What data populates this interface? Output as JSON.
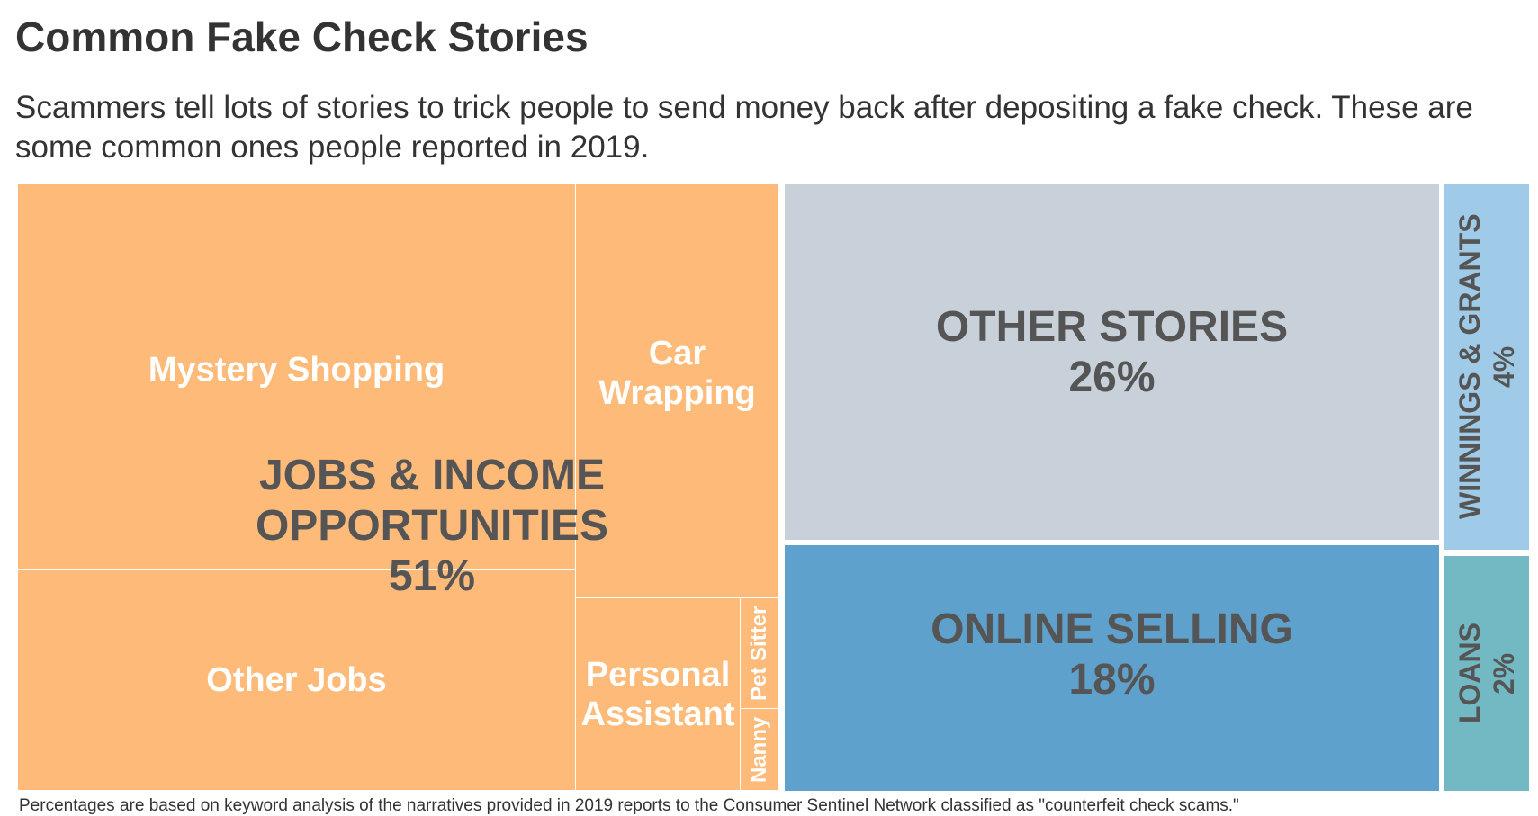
{
  "title": "Common Fake Check Stories",
  "subtitle": "Scammers tell lots of stories to trick people to send money back after depositing a fake check. These are some common ones people reported in 2019.",
  "footer": "Percentages are based on keyword analysis of the narratives provided in 2019 reports to the Consumer Sentinel Network classified as \"counterfeit check scams.\"",
  "chart_data": {
    "type": "treemap",
    "title": "Common Fake Check Stories",
    "categories": [
      {
        "name": "JOBS & INCOME OPPORTUNITIES",
        "label": "51%",
        "value": 51,
        "color": "#FDBA78",
        "children": [
          "Mystery Shopping",
          "Other Jobs",
          "Car Wrapping",
          "Personal Assistant",
          "Pet Sitter",
          "Nanny"
        ]
      },
      {
        "name": "OTHER STORIES",
        "label": "26%",
        "value": 26,
        "color": "#C8D0DA",
        "children": []
      },
      {
        "name": "ONLINE SELLING",
        "label": "18%",
        "value": 18,
        "color": "#5EA1CC",
        "children": []
      },
      {
        "name": "WINNINGS & GRANTS",
        "label": "4%",
        "value": 4,
        "color": "#A0CBE8",
        "children": []
      },
      {
        "name": "LOANS",
        "label": "2%",
        "value": 2,
        "color": "#73B9C3",
        "children": []
      }
    ]
  }
}
